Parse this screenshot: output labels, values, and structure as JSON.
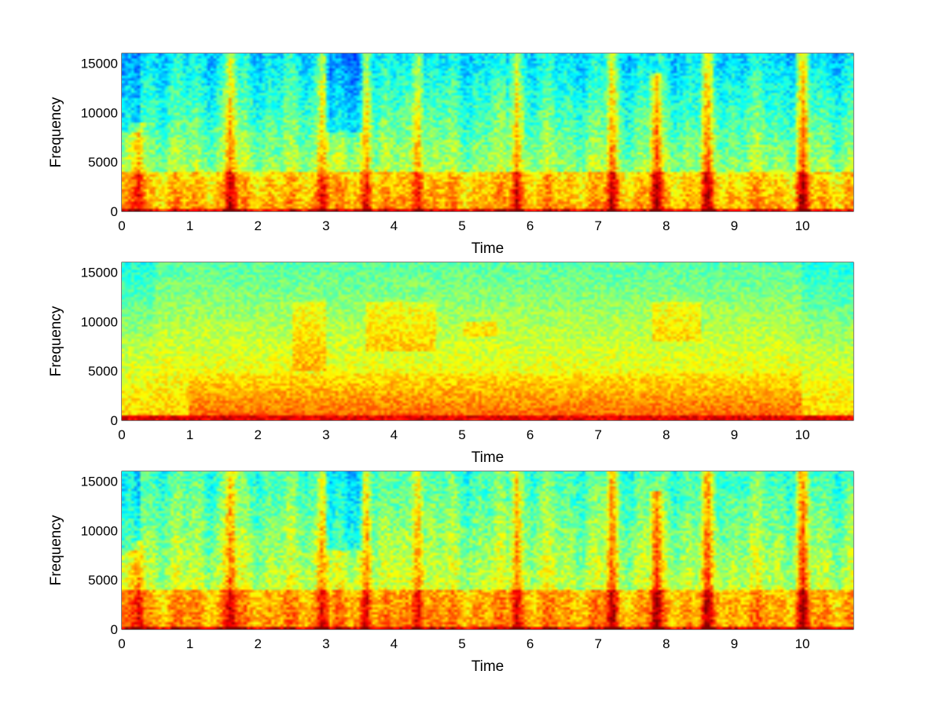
{
  "chart_data": [
    {
      "type": "heatmap",
      "xlabel": "Time",
      "ylabel": "Frequency",
      "xlim": [
        0,
        10.75
      ],
      "ylim": [
        0,
        16000
      ],
      "x_ticks": [
        "0",
        "1",
        "2",
        "3",
        "4",
        "5",
        "6",
        "7",
        "8",
        "9",
        "10"
      ],
      "y_ticks": [
        "0",
        "5000",
        "10000",
        "15000"
      ],
      "colormap": "jet",
      "grid": false,
      "pattern": "speech-clean",
      "energy_bursts": [
        {
          "time": 0.25,
          "freq_extent": 9000,
          "intensity": 0.7
        },
        {
          "time": 1.6,
          "freq_extent": 16000,
          "intensity": 0.9
        },
        {
          "time": 2.95,
          "freq_extent": 16000,
          "intensity": 0.9
        },
        {
          "time": 3.6,
          "freq_extent": 16000,
          "intensity": 0.85
        },
        {
          "time": 4.35,
          "freq_extent": 16000,
          "intensity": 0.95
        },
        {
          "time": 5.8,
          "freq_extent": 16000,
          "intensity": 0.9
        },
        {
          "time": 7.2,
          "freq_extent": 16000,
          "intensity": 0.9
        },
        {
          "time": 7.85,
          "freq_extent": 14000,
          "intensity": 1.0
        },
        {
          "time": 8.6,
          "freq_extent": 16000,
          "intensity": 0.85
        },
        {
          "time": 10.0,
          "freq_extent": 16000,
          "intensity": 0.95
        }
      ]
    },
    {
      "type": "heatmap",
      "xlabel": "Time",
      "ylabel": "Frequency",
      "xlim": [
        0,
        10.75
      ],
      "ylim": [
        0,
        16000
      ],
      "x_ticks": [
        "0",
        "1",
        "2",
        "3",
        "4",
        "5",
        "6",
        "7",
        "8",
        "9",
        "10"
      ],
      "y_ticks": [
        "0",
        "5000",
        "10000",
        "15000"
      ],
      "colormap": "jet",
      "grid": false,
      "pattern": "diffuse",
      "energy_regions": [
        {
          "time_range": [
            2.5,
            3.0
          ],
          "freq_range": [
            5000,
            12000
          ]
        },
        {
          "time_range": [
            3.6,
            4.6
          ],
          "freq_range": [
            7000,
            12000
          ]
        },
        {
          "time_range": [
            5.0,
            5.5
          ],
          "freq_range": [
            8500,
            10000
          ]
        },
        {
          "time_range": [
            7.8,
            8.5
          ],
          "freq_range": [
            8000,
            12000
          ]
        }
      ]
    },
    {
      "type": "heatmap",
      "xlabel": "Time",
      "ylabel": "Frequency",
      "xlim": [
        0,
        10.75
      ],
      "ylim": [
        0,
        16000
      ],
      "x_ticks": [
        "0",
        "1",
        "2",
        "3",
        "4",
        "5",
        "6",
        "7",
        "8",
        "9",
        "10"
      ],
      "y_ticks": [
        "0",
        "5000",
        "10000",
        "15000"
      ],
      "colormap": "jet",
      "grid": false,
      "pattern": "speech-enhanced",
      "energy_bursts": [
        {
          "time": 0.25,
          "freq_extent": 9000,
          "intensity": 0.65
        },
        {
          "time": 1.6,
          "freq_extent": 16000,
          "intensity": 0.85
        },
        {
          "time": 2.95,
          "freq_extent": 16000,
          "intensity": 0.85
        },
        {
          "time": 3.6,
          "freq_extent": 16000,
          "intensity": 0.8
        },
        {
          "time": 4.35,
          "freq_extent": 16000,
          "intensity": 0.9
        },
        {
          "time": 5.8,
          "freq_extent": 16000,
          "intensity": 0.85
        },
        {
          "time": 7.2,
          "freq_extent": 16000,
          "intensity": 0.85
        },
        {
          "time": 7.85,
          "freq_extent": 14000,
          "intensity": 0.95
        },
        {
          "time": 8.6,
          "freq_extent": 16000,
          "intensity": 0.8
        },
        {
          "time": 10.0,
          "freq_extent": 16000,
          "intensity": 0.9
        }
      ]
    }
  ]
}
